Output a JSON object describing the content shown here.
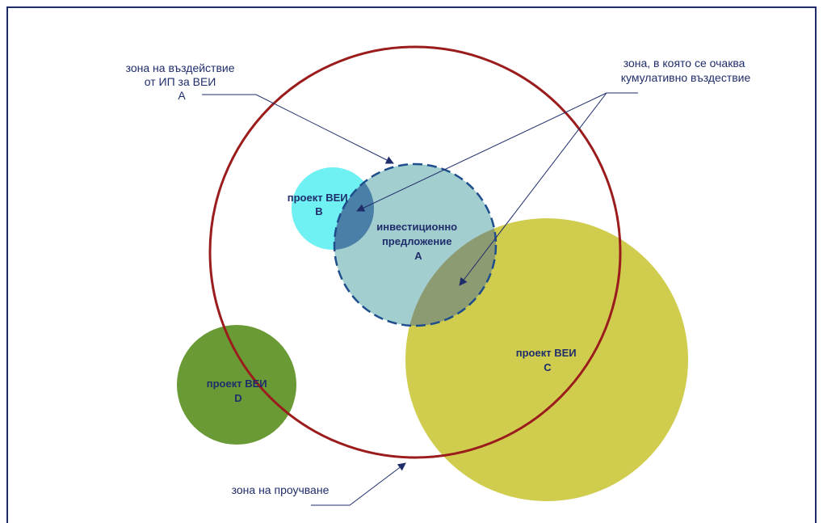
{
  "labels": {
    "impact_zone": [
      "зона на въздействие",
      "от ИП за ВЕИ",
      "А"
    ],
    "cumulative_zone": [
      "зона, в която се очаква",
      "кумулативно въздествие"
    ],
    "study_zone": "зона на проучване"
  },
  "circles": {
    "project_b": [
      "проект ВЕИ",
      "В"
    ],
    "proposal_a": [
      "инвестиционно",
      "предложение",
      "А"
    ],
    "project_c": [
      "проект ВЕИ",
      "С"
    ],
    "project_d": [
      "проект ВЕИ",
      "D"
    ]
  },
  "colors": {
    "frame": "#1f2d6b",
    "study_circle": "#9b1c1c",
    "project_b": "#6ff0f2",
    "proposal_a": "#9dcbcd",
    "project_c": "#d0cc4e",
    "project_d": "#6a9a35",
    "text": "#1f2d6b"
  }
}
